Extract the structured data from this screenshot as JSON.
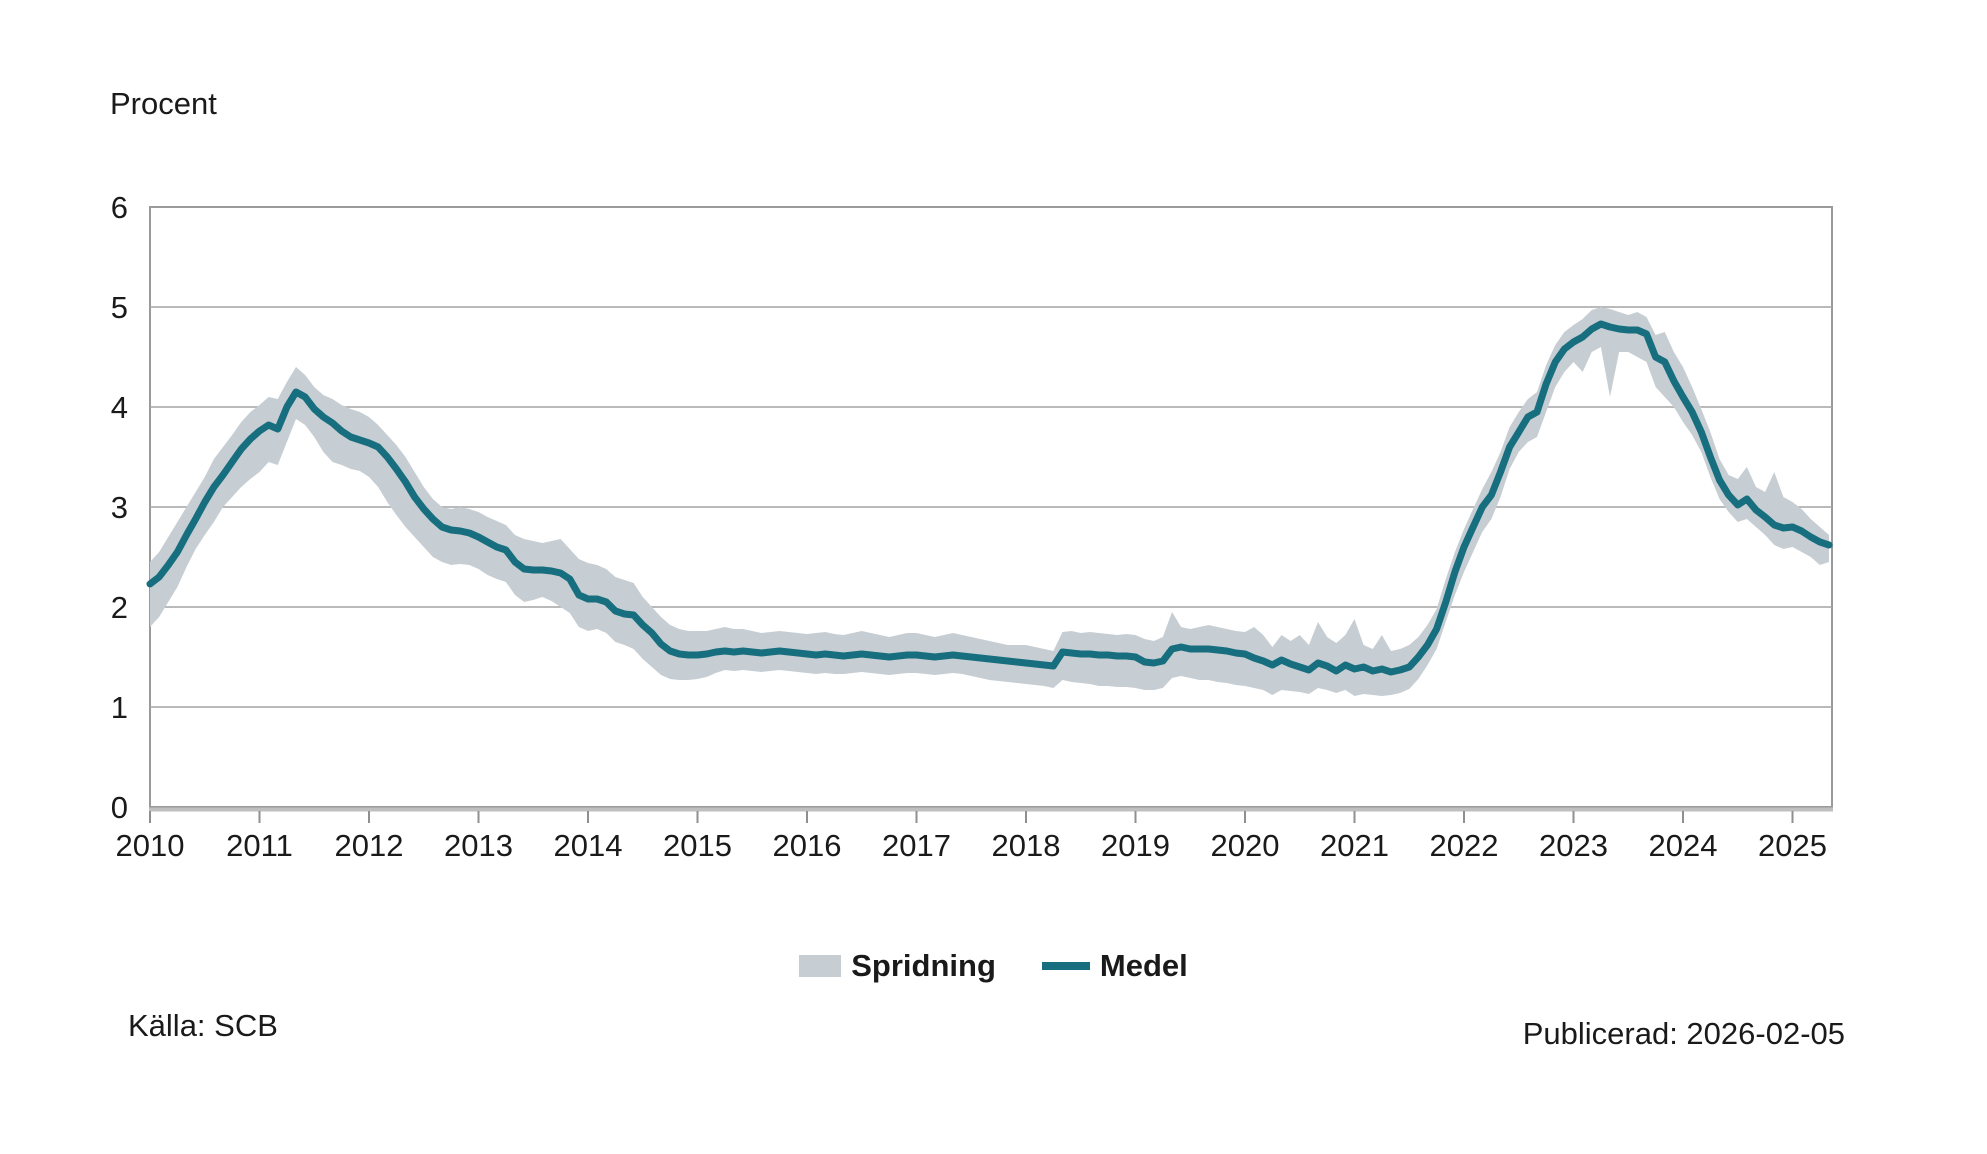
{
  "page": {
    "unit_label": "Procent",
    "source": "Källa: SCB",
    "published": "Publicerad: 2026-02-05"
  },
  "legend": {
    "band_label": "Spridning",
    "line_label": "Medel"
  },
  "colors": {
    "line": "#176e7e",
    "band": "#c7ced3",
    "grid": "#a3a3a3",
    "border": "#9a9a9a",
    "axis": "#bfbfbf",
    "tick": "#8f8f8f",
    "text": "#1a1a1a"
  },
  "chart_data": {
    "type": "line",
    "title": "Procent",
    "ylabel": "Procent",
    "xlabel": "",
    "x_start": "2010-01",
    "x_end": "2025-05",
    "frequency": "monthly",
    "x_tick_labels": [
      "2010",
      "2011",
      "2012",
      "2013",
      "2014",
      "2015",
      "2016",
      "2017",
      "2018",
      "2019",
      "2020",
      "2021",
      "2022",
      "2023",
      "2024",
      "2025"
    ],
    "yticks": [
      0,
      1,
      2,
      3,
      4,
      5,
      6
    ],
    "ylim": [
      0,
      6
    ],
    "grid": true,
    "legend_position": "bottom",
    "series": [
      {
        "name": "Medel",
        "type": "line",
        "values": [
          2.23,
          2.3,
          2.42,
          2.55,
          2.72,
          2.88,
          3.05,
          3.2,
          3.32,
          3.45,
          3.58,
          3.68,
          3.76,
          3.82,
          3.78,
          4.0,
          4.15,
          4.1,
          3.98,
          3.9,
          3.84,
          3.76,
          3.7,
          3.67,
          3.64,
          3.6,
          3.5,
          3.38,
          3.25,
          3.1,
          2.98,
          2.88,
          2.8,
          2.77,
          2.76,
          2.74,
          2.7,
          2.65,
          2.6,
          2.57,
          2.45,
          2.38,
          2.37,
          2.37,
          2.36,
          2.34,
          2.28,
          2.12,
          2.08,
          2.08,
          2.05,
          1.96,
          1.93,
          1.92,
          1.82,
          1.74,
          1.63,
          1.56,
          1.53,
          1.52,
          1.52,
          1.53,
          1.55,
          1.56,
          1.55,
          1.56,
          1.55,
          1.54,
          1.55,
          1.56,
          1.55,
          1.54,
          1.53,
          1.52,
          1.53,
          1.52,
          1.51,
          1.52,
          1.53,
          1.52,
          1.51,
          1.5,
          1.51,
          1.52,
          1.52,
          1.51,
          1.5,
          1.51,
          1.52,
          1.51,
          1.5,
          1.49,
          1.48,
          1.47,
          1.46,
          1.45,
          1.44,
          1.43,
          1.42,
          1.41,
          1.55,
          1.54,
          1.53,
          1.53,
          1.52,
          1.52,
          1.51,
          1.51,
          1.5,
          1.45,
          1.44,
          1.46,
          1.58,
          1.6,
          1.58,
          1.58,
          1.58,
          1.57,
          1.56,
          1.54,
          1.53,
          1.49,
          1.46,
          1.42,
          1.47,
          1.43,
          1.4,
          1.37,
          1.44,
          1.41,
          1.36,
          1.42,
          1.38,
          1.4,
          1.36,
          1.38,
          1.35,
          1.37,
          1.4,
          1.5,
          1.62,
          1.78,
          2.05,
          2.35,
          2.6,
          2.8,
          3.0,
          3.12,
          3.35,
          3.6,
          3.75,
          3.9,
          3.95,
          4.23,
          4.45,
          4.58,
          4.65,
          4.7,
          4.78,
          4.83,
          4.8,
          4.78,
          4.77,
          4.77,
          4.73,
          4.5,
          4.45,
          4.26,
          4.1,
          3.95,
          3.75,
          3.5,
          3.27,
          3.12,
          3.02,
          3.08,
          2.97,
          2.9,
          2.82,
          2.79,
          2.8,
          2.76,
          2.7,
          2.65,
          2.62
        ]
      },
      {
        "name": "Spridning",
        "type": "band",
        "lower": [
          1.8,
          1.9,
          2.05,
          2.2,
          2.4,
          2.58,
          2.72,
          2.85,
          3.0,
          3.1,
          3.2,
          3.28,
          3.35,
          3.45,
          3.42,
          3.65,
          3.88,
          3.82,
          3.7,
          3.55,
          3.45,
          3.42,
          3.38,
          3.36,
          3.3,
          3.2,
          3.05,
          2.92,
          2.8,
          2.7,
          2.6,
          2.5,
          2.45,
          2.42,
          2.43,
          2.42,
          2.38,
          2.32,
          2.28,
          2.25,
          2.12,
          2.05,
          2.07,
          2.1,
          2.06,
          2.0,
          1.94,
          1.8,
          1.76,
          1.78,
          1.74,
          1.65,
          1.62,
          1.58,
          1.48,
          1.4,
          1.32,
          1.28,
          1.27,
          1.27,
          1.28,
          1.3,
          1.34,
          1.37,
          1.36,
          1.37,
          1.36,
          1.35,
          1.36,
          1.37,
          1.36,
          1.35,
          1.34,
          1.33,
          1.34,
          1.33,
          1.33,
          1.34,
          1.35,
          1.34,
          1.33,
          1.32,
          1.33,
          1.34,
          1.34,
          1.33,
          1.32,
          1.33,
          1.34,
          1.33,
          1.31,
          1.29,
          1.27,
          1.26,
          1.25,
          1.24,
          1.23,
          1.22,
          1.21,
          1.19,
          1.27,
          1.25,
          1.24,
          1.23,
          1.21,
          1.21,
          1.2,
          1.2,
          1.19,
          1.17,
          1.17,
          1.19,
          1.29,
          1.31,
          1.29,
          1.27,
          1.27,
          1.25,
          1.24,
          1.22,
          1.21,
          1.19,
          1.17,
          1.12,
          1.17,
          1.16,
          1.15,
          1.13,
          1.19,
          1.17,
          1.14,
          1.17,
          1.11,
          1.13,
          1.12,
          1.11,
          1.12,
          1.14,
          1.18,
          1.28,
          1.42,
          1.58,
          1.85,
          2.12,
          2.35,
          2.55,
          2.75,
          2.88,
          3.1,
          3.38,
          3.55,
          3.65,
          3.7,
          3.95,
          4.2,
          4.35,
          4.45,
          4.35,
          4.55,
          4.6,
          4.1,
          4.55,
          4.55,
          4.5,
          4.45,
          4.2,
          4.1,
          4.0,
          3.85,
          3.72,
          3.55,
          3.3,
          3.08,
          2.95,
          2.85,
          2.88,
          2.8,
          2.72,
          2.62,
          2.58,
          2.6,
          2.55,
          2.5,
          2.42,
          2.45
        ],
        "upper": [
          2.45,
          2.55,
          2.7,
          2.85,
          3.0,
          3.15,
          3.3,
          3.48,
          3.6,
          3.72,
          3.85,
          3.95,
          4.02,
          4.1,
          4.08,
          4.25,
          4.4,
          4.32,
          4.2,
          4.12,
          4.08,
          4.02,
          3.98,
          3.95,
          3.9,
          3.82,
          3.72,
          3.62,
          3.5,
          3.35,
          3.2,
          3.08,
          3.0,
          2.98,
          3.0,
          2.98,
          2.95,
          2.9,
          2.86,
          2.82,
          2.72,
          2.68,
          2.66,
          2.64,
          2.66,
          2.68,
          2.58,
          2.48,
          2.44,
          2.42,
          2.38,
          2.3,
          2.27,
          2.24,
          2.1,
          2.0,
          1.9,
          1.82,
          1.78,
          1.76,
          1.76,
          1.76,
          1.78,
          1.8,
          1.78,
          1.78,
          1.76,
          1.74,
          1.75,
          1.76,
          1.75,
          1.74,
          1.73,
          1.74,
          1.75,
          1.73,
          1.72,
          1.74,
          1.76,
          1.74,
          1.72,
          1.7,
          1.72,
          1.74,
          1.74,
          1.72,
          1.7,
          1.72,
          1.74,
          1.72,
          1.7,
          1.68,
          1.66,
          1.64,
          1.62,
          1.62,
          1.62,
          1.6,
          1.58,
          1.56,
          1.75,
          1.76,
          1.74,
          1.75,
          1.74,
          1.73,
          1.72,
          1.73,
          1.72,
          1.68,
          1.66,
          1.7,
          1.95,
          1.8,
          1.78,
          1.8,
          1.82,
          1.8,
          1.78,
          1.76,
          1.75,
          1.8,
          1.72,
          1.6,
          1.72,
          1.66,
          1.72,
          1.62,
          1.85,
          1.7,
          1.64,
          1.72,
          1.88,
          1.62,
          1.58,
          1.72,
          1.56,
          1.58,
          1.62,
          1.7,
          1.82,
          1.98,
          2.28,
          2.55,
          2.78,
          2.98,
          3.18,
          3.35,
          3.55,
          3.8,
          3.95,
          4.08,
          4.15,
          4.42,
          4.62,
          4.75,
          4.82,
          4.88,
          4.97,
          5.0,
          4.98,
          4.95,
          4.92,
          4.95,
          4.9,
          4.72,
          4.75,
          4.55,
          4.4,
          4.2,
          3.98,
          3.75,
          3.48,
          3.32,
          3.28,
          3.4,
          3.2,
          3.15,
          3.35,
          3.1,
          3.05,
          2.98,
          2.88,
          2.8,
          2.72
        ]
      }
    ]
  }
}
